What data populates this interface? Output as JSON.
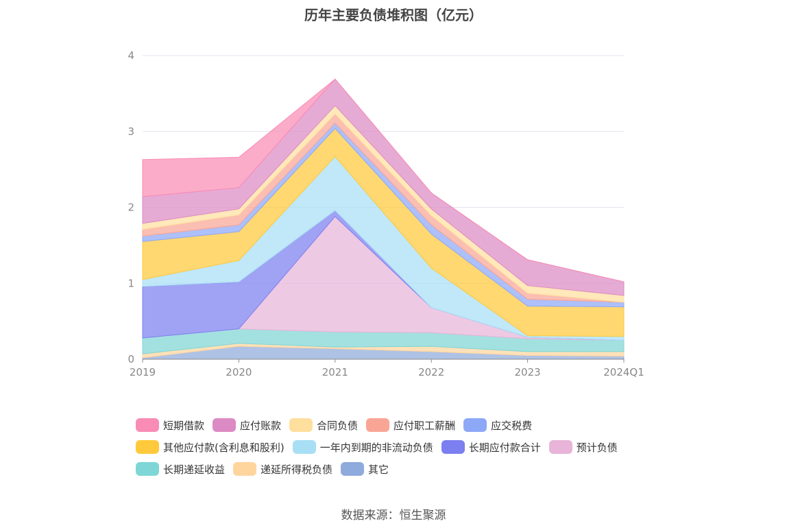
{
  "title": "历年主要负债堆积图（亿元）",
  "source": "数据来源：恒生聚源",
  "chart_data": {
    "type": "area",
    "stacked": true,
    "title": "历年主要负债堆积图（亿元）",
    "xlabel": "",
    "ylabel": "",
    "categories": [
      "2019",
      "2020",
      "2021",
      "2022",
      "2023",
      "2024Q1"
    ],
    "ylim": [
      0,
      4
    ],
    "yticks": [
      0,
      1,
      2,
      3,
      4
    ],
    "grid": true,
    "legend_position": "bottom",
    "series": [
      {
        "name": "其它",
        "color": "#8faadc",
        "values": [
          0.02,
          0.17,
          0.14,
          0.1,
          0.05,
          0.04
        ]
      },
      {
        "name": "递延所得税负债",
        "color": "#ffd59e",
        "values": [
          0.05,
          0.04,
          0.02,
          0.07,
          0.05,
          0.06
        ]
      },
      {
        "name": "长期递延收益",
        "color": "#7fd6d6",
        "values": [
          0.21,
          0.19,
          0.2,
          0.18,
          0.17,
          0.15
        ]
      },
      {
        "name": "预计负债",
        "color": "#e8b4d8",
        "values": [
          0.0,
          0.0,
          1.52,
          0.33,
          0.02,
          0.0
        ]
      },
      {
        "name": "长期应付款合计",
        "color": "#7b7ff0",
        "values": [
          0.68,
          0.62,
          0.08,
          0.0,
          0.0,
          0.0
        ]
      },
      {
        "name": "一年内到期的非流动负债",
        "color": "#a8dff5",
        "values": [
          0.09,
          0.28,
          0.71,
          0.52,
          0.02,
          0.05
        ]
      },
      {
        "name": "其他应付款(含利息和股利)",
        "color": "#ffc93c",
        "values": [
          0.5,
          0.38,
          0.37,
          0.45,
          0.39,
          0.39
        ]
      },
      {
        "name": "应交税费",
        "color": "#8ea8f8",
        "values": [
          0.07,
          0.09,
          0.07,
          0.12,
          0.09,
          0.06
        ]
      },
      {
        "name": "应付职工薪酬",
        "color": "#f9a596",
        "values": [
          0.09,
          0.13,
          0.12,
          0.12,
          0.08,
          0.0
        ]
      },
      {
        "name": "合同负债",
        "color": "#ffdf9e",
        "values": [
          0.08,
          0.08,
          0.11,
          0.09,
          0.1,
          0.09
        ]
      },
      {
        "name": "应付账款",
        "color": "#dc8ac4",
        "values": [
          0.35,
          0.28,
          0.35,
          0.21,
          0.34,
          0.18
        ]
      },
      {
        "name": "短期借款",
        "color": "#f98cb4",
        "values": [
          0.49,
          0.4,
          0.0,
          0.0,
          0.0,
          0.0
        ]
      }
    ],
    "legend_order": [
      [
        "短期借款",
        "应付账款",
        "合同负债",
        "应付职工薪酬",
        "应交税费"
      ],
      [
        "其他应付款(含利息和股利)",
        "一年内到期的非流动负债",
        "长期应付款合计",
        "预计负债"
      ],
      [
        "长期递延收益",
        "递延所得税负债",
        "其它"
      ]
    ]
  }
}
